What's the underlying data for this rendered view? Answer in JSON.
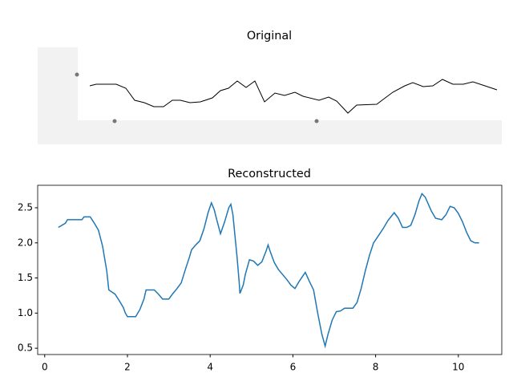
{
  "chart_data": [
    {
      "type": "image",
      "title": "Original"
    },
    {
      "type": "line",
      "title": "Reconstructed",
      "x": [
        0.33,
        0.5,
        0.55,
        0.9,
        0.95,
        1.1,
        1.2,
        1.3,
        1.4,
        1.5,
        1.55,
        1.7,
        1.8,
        1.9,
        1.95,
        2.0,
        2.2,
        2.3,
        2.4,
        2.45,
        2.65,
        2.75,
        2.85,
        3.0,
        3.1,
        3.2,
        3.3,
        3.4,
        3.5,
        3.55,
        3.65,
        3.75,
        3.85,
        3.95,
        4.03,
        4.1,
        4.15,
        4.25,
        4.35,
        4.45,
        4.5,
        4.55,
        4.6,
        4.65,
        4.7,
        4.72,
        4.8,
        4.85,
        4.95,
        5.05,
        5.15,
        5.25,
        5.35,
        5.4,
        5.45,
        5.55,
        5.65,
        5.75,
        5.85,
        5.95,
        6.05,
        6.15,
        6.3,
        6.4,
        6.5,
        6.6,
        6.7,
        6.78,
        6.85,
        6.95,
        7.05,
        7.15,
        7.25,
        7.45,
        7.55,
        7.65,
        7.75,
        7.85,
        7.95,
        8.1,
        8.2,
        8.3,
        8.45,
        8.55,
        8.65,
        8.75,
        8.85,
        8.95,
        9.05,
        9.12,
        9.2,
        9.35,
        9.45,
        9.6,
        9.7,
        9.8,
        9.9,
        10.0,
        10.1,
        10.2,
        10.3,
        10.4,
        10.5
      ],
      "series": [
        {
          "color": "#1f77b4",
          "values": [
            2.22,
            2.28,
            2.33,
            2.33,
            2.37,
            2.37,
            2.28,
            2.18,
            1.95,
            1.6,
            1.33,
            1.27,
            1.18,
            1.08,
            1.0,
            0.95,
            0.95,
            1.05,
            1.2,
            1.33,
            1.33,
            1.27,
            1.2,
            1.2,
            1.28,
            1.35,
            1.43,
            1.62,
            1.8,
            1.9,
            1.97,
            2.03,
            2.2,
            2.43,
            2.57,
            2.47,
            2.35,
            2.13,
            2.3,
            2.5,
            2.55,
            2.4,
            2.1,
            1.8,
            1.45,
            1.28,
            1.4,
            1.55,
            1.76,
            1.74,
            1.68,
            1.73,
            1.88,
            1.97,
            1.88,
            1.72,
            1.62,
            1.55,
            1.48,
            1.4,
            1.35,
            1.45,
            1.58,
            1.45,
            1.33,
            1.0,
            0.7,
            0.53,
            0.7,
            0.9,
            1.02,
            1.03,
            1.07,
            1.07,
            1.15,
            1.35,
            1.6,
            1.82,
            2.0,
            2.13,
            2.22,
            2.32,
            2.43,
            2.35,
            2.22,
            2.22,
            2.25,
            2.4,
            2.6,
            2.7,
            2.65,
            2.45,
            2.35,
            2.33,
            2.4,
            2.52,
            2.5,
            2.42,
            2.3,
            2.15,
            2.03,
            2.0,
            2.0
          ]
        }
      ],
      "xlim": [
        -0.17,
        11.05
      ],
      "ylim": [
        0.41,
        2.82
      ],
      "xticks": [
        0,
        2,
        4,
        6,
        8,
        10
      ],
      "yticks": [
        0.5,
        {
          "value": 1,
          "label": "1.0"
        },
        1.5,
        {
          "value": 2,
          "label": "2.0"
        },
        2.5
      ]
    }
  ]
}
